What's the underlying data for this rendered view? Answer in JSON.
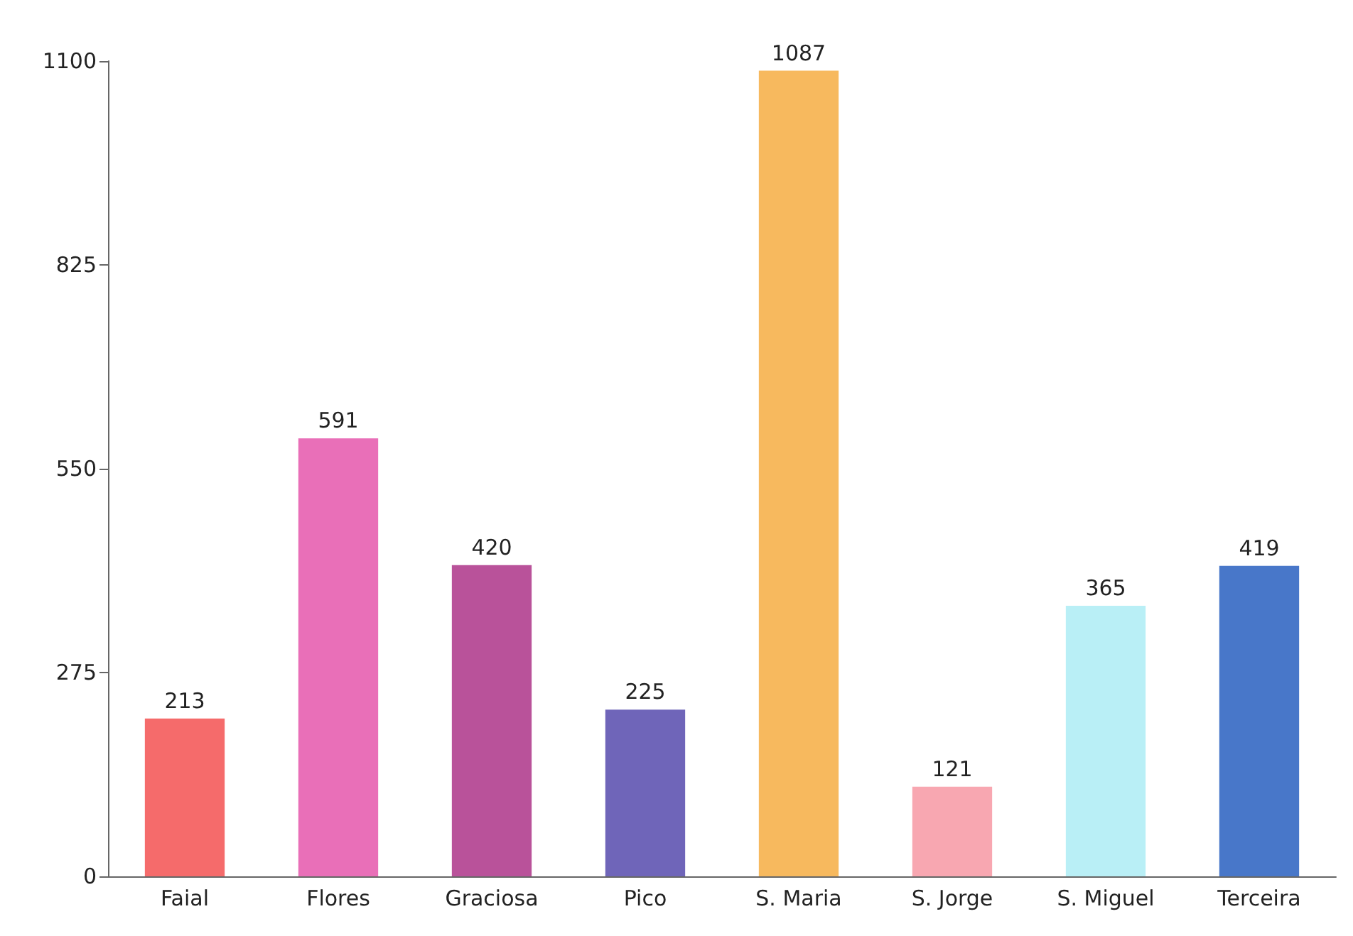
{
  "chart_data": {
    "type": "bar",
    "categories": [
      "Faial",
      "Flores",
      "Graciosa",
      "Pico",
      "S. Maria",
      "S. Jorge",
      "S. Miguel",
      "Terceira"
    ],
    "values": [
      213,
      591,
      420,
      225,
      1087,
      121,
      365,
      419
    ],
    "colors": [
      "#f56b6b",
      "#e96fb8",
      "#b9529a",
      "#6f65b9",
      "#f7b95e",
      "#f8a7b1",
      "#b9eff6",
      "#4877c9"
    ],
    "ylim": [
      0,
      1100
    ],
    "yticks": [
      0,
      275,
      550,
      825,
      1100
    ],
    "grid": false,
    "data_labels": true
  }
}
